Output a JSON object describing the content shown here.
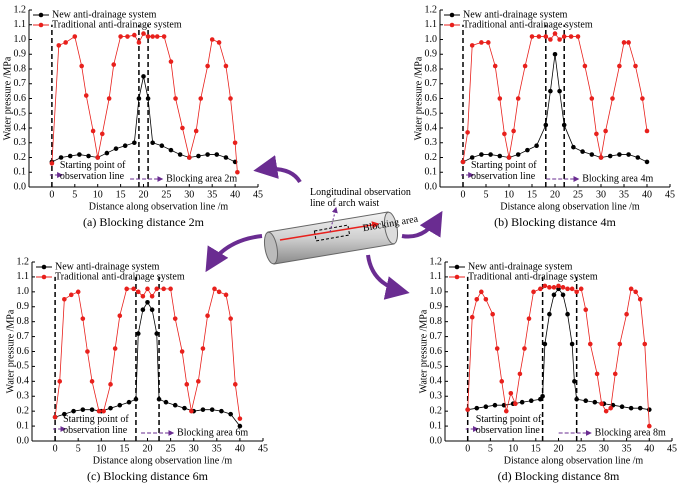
{
  "chart_data": [
    {
      "type": "line",
      "y_label": "Water pressure /MPa",
      "x_label": "Distance along observation line /m",
      "caption": "(a) Blocking distance 2m",
      "xlim": [
        -5,
        45
      ],
      "xticks": [
        0,
        5,
        10,
        15,
        20,
        25,
        30,
        35,
        40,
        45
      ],
      "ylim": [
        0,
        1.2
      ],
      "yticks": [
        {
          "value": 0,
          "label": "0.0"
        },
        0.1,
        0.2,
        0.3,
        0.4,
        0.5,
        0.6,
        0.7,
        0.8,
        0.9,
        {
          "value": 1,
          "label": "1.0"
        },
        1.1,
        1.2
      ],
      "vlines": [
        0,
        19,
        21
      ],
      "annotations": {
        "start_label": [
          "Starting point of",
          "observation line"
        ],
        "block_label": "Blocking area 2m"
      },
      "series": [
        {
          "name": "New anti-drainage system",
          "color": "#000000",
          "x": [
            0,
            2,
            4,
            6,
            8,
            10,
            12,
            14,
            16,
            18,
            19,
            20,
            21,
            22,
            24,
            26,
            28,
            30,
            32,
            34,
            36,
            38,
            40
          ],
          "values": [
            0.17,
            0.2,
            0.21,
            0.22,
            0.21,
            0.2,
            0.23,
            0.26,
            0.28,
            0.3,
            0.6,
            0.75,
            0.6,
            0.3,
            0.28,
            0.25,
            0.22,
            0.2,
            0.21,
            0.22,
            0.22,
            0.2,
            0.17
          ]
        },
        {
          "name": "Traditional anti-drainage system",
          "color": "#e8201c",
          "x": [
            0,
            1.5,
            3,
            5,
            6.5,
            7.5,
            9,
            10,
            11,
            12.5,
            13.5,
            15,
            16.5,
            18,
            19,
            20,
            21,
            22,
            23,
            24.5,
            26,
            27,
            28.5,
            30,
            31.5,
            32.5,
            34,
            35,
            36.5,
            38,
            39,
            40,
            40.5
          ],
          "values": [
            0.16,
            0.96,
            0.98,
            1.02,
            0.82,
            0.62,
            0.38,
            0.2,
            0.36,
            0.6,
            0.83,
            1.02,
            1.02,
            1.03,
            0.98,
            1.04,
            1.02,
            1.02,
            1.02,
            1.02,
            0.85,
            0.6,
            0.4,
            0.2,
            0.38,
            0.6,
            0.82,
            1.0,
            0.98,
            0.82,
            0.6,
            0.3,
            0.1
          ]
        }
      ]
    },
    {
      "type": "line",
      "y_label": "Water pressure /MPa",
      "x_label": "Distance along observation line /m",
      "caption": "(b) Blocking distance 4m",
      "xlim": [
        -5,
        45
      ],
      "xticks": [
        0,
        5,
        10,
        15,
        20,
        25,
        30,
        35,
        40,
        45
      ],
      "ylim": [
        0,
        1.2
      ],
      "yticks": [
        {
          "value": 0,
          "label": "0.0"
        },
        0.1,
        0.2,
        0.3,
        0.4,
        0.5,
        0.6,
        0.7,
        0.8,
        0.9,
        {
          "value": 1,
          "label": "1.0"
        },
        1.1,
        1.2
      ],
      "vlines": [
        0,
        18,
        22
      ],
      "annotations": {
        "start_label": [
          "Starting point of",
          "observation line"
        ],
        "block_label": "Blocking area 4m"
      },
      "series": [
        {
          "name": "New anti-drainage system",
          "color": "#000000",
          "x": [
            0,
            2,
            4,
            6,
            8,
            10,
            12,
            14,
            16,
            18,
            19,
            20,
            21,
            22,
            24,
            26,
            28,
            30,
            32,
            34,
            36,
            38,
            40
          ],
          "values": [
            0.17,
            0.2,
            0.22,
            0.22,
            0.21,
            0.2,
            0.22,
            0.25,
            0.28,
            0.42,
            0.65,
            0.9,
            0.65,
            0.42,
            0.27,
            0.24,
            0.22,
            0.2,
            0.21,
            0.22,
            0.22,
            0.2,
            0.17
          ]
        },
        {
          "name": "Traditional anti-drainage system",
          "color": "#e8201c",
          "x": [
            0,
            1,
            2,
            4,
            5.5,
            7,
            8,
            9,
            10,
            11,
            12,
            13.5,
            15,
            16.5,
            18,
            19,
            20,
            21,
            22,
            23.5,
            25,
            26.5,
            28,
            29,
            30,
            31,
            32.5,
            34,
            35,
            36,
            37.5,
            39,
            40
          ],
          "values": [
            0.17,
            0.37,
            0.96,
            0.98,
            0.98,
            0.82,
            0.6,
            0.36,
            0.2,
            0.38,
            0.6,
            0.82,
            1.02,
            1.02,
            1.02,
            1.0,
            1.04,
            1.0,
            1.02,
            1.02,
            1.02,
            0.82,
            0.6,
            0.36,
            0.2,
            0.38,
            0.6,
            0.82,
            0.98,
            0.98,
            0.82,
            0.6,
            0.38
          ]
        }
      ]
    },
    {
      "type": "line",
      "y_label": "Water pressure /MPa",
      "x_label": "Distance along observation line /m",
      "caption": "(c) Blocking distance 6m",
      "xlim": [
        -5,
        45
      ],
      "xticks": [
        0,
        5,
        10,
        15,
        20,
        25,
        30,
        35,
        40,
        45
      ],
      "ylim": [
        0,
        1.2
      ],
      "yticks": [
        {
          "value": 0,
          "label": "0.0"
        },
        0.1,
        0.2,
        0.3,
        0.4,
        0.5,
        0.6,
        0.7,
        0.8,
        0.9,
        {
          "value": 1,
          "label": "1.0"
        },
        1.1,
        1.2
      ],
      "vlines": [
        0,
        17.5,
        22.5
      ],
      "annotations": {
        "start_label": [
          "Starting point of",
          "observation line"
        ],
        "block_label": "Blocking area 6m"
      },
      "series": [
        {
          "name": "New anti-drainage system",
          "color": "#000000",
          "x": [
            0,
            2,
            4,
            6,
            8,
            10,
            12,
            14,
            16,
            17.5,
            18,
            19,
            20,
            21,
            22,
            22.5,
            24,
            26,
            28,
            30,
            32,
            34,
            36,
            38,
            40
          ],
          "values": [
            0.16,
            0.18,
            0.2,
            0.21,
            0.21,
            0.2,
            0.22,
            0.24,
            0.26,
            0.28,
            0.72,
            0.88,
            0.93,
            0.88,
            0.72,
            0.28,
            0.26,
            0.24,
            0.22,
            0.2,
            0.21,
            0.21,
            0.2,
            0.18,
            0.1
          ]
        },
        {
          "name": "Traditional anti-drainage system",
          "color": "#e8201c",
          "x": [
            0,
            1,
            2,
            3.5,
            5,
            6,
            7,
            8,
            9.5,
            10.5,
            12,
            13,
            14,
            15.5,
            17,
            18,
            19,
            20,
            21,
            22,
            23.5,
            25,
            26,
            27.5,
            28.5,
            29.5,
            31,
            32,
            33,
            34.5,
            35.5,
            37,
            38,
            39,
            40
          ],
          "values": [
            0.16,
            0.4,
            0.95,
            0.98,
            1.0,
            0.82,
            0.6,
            0.4,
            0.2,
            0.2,
            0.38,
            0.62,
            0.84,
            1.02,
            1.02,
            1.0,
            0.97,
            1.02,
            0.97,
            1.02,
            1.02,
            1.02,
            0.82,
            0.6,
            0.38,
            0.2,
            0.4,
            0.62,
            0.84,
            1.02,
            1.0,
            0.98,
            0.82,
            0.38,
            0.15
          ]
        }
      ]
    },
    {
      "type": "line",
      "y_label": "Water pressure /MPa",
      "x_label": "Distance along observation line /m",
      "caption": "(d) Blocking distance 8m",
      "xlim": [
        -5,
        45
      ],
      "xticks": [
        0,
        5,
        10,
        15,
        20,
        25,
        30,
        35,
        40,
        45
      ],
      "ylim": [
        0,
        1.2
      ],
      "yticks": [
        {
          "value": 0,
          "label": "0.0"
        },
        0.1,
        0.2,
        0.3,
        0.4,
        0.5,
        0.6,
        0.7,
        0.8,
        0.9,
        {
          "value": 1,
          "label": "1.0"
        },
        1.1,
        1.2
      ],
      "vlines": [
        0,
        16.5,
        24
      ],
      "annotations": {
        "start_label": [
          "Starting point of",
          "observation line"
        ],
        "block_label": "Blocking area 8m"
      },
      "series": [
        {
          "name": "New anti-drainage system",
          "color": "#000000",
          "x": [
            0,
            2,
            4,
            6,
            8,
            10,
            12,
            14,
            16,
            16.5,
            17,
            18,
            19,
            20,
            21,
            22,
            23,
            23.5,
            24,
            26,
            28,
            30,
            32,
            34,
            36,
            38,
            40
          ],
          "values": [
            0.21,
            0.22,
            0.23,
            0.24,
            0.24,
            0.25,
            0.26,
            0.27,
            0.28,
            0.3,
            0.65,
            0.85,
            0.98,
            1.02,
            0.98,
            0.85,
            0.65,
            0.4,
            0.28,
            0.27,
            0.26,
            0.25,
            0.24,
            0.23,
            0.22,
            0.22,
            0.21
          ]
        },
        {
          "name": "Traditional anti-drainage system",
          "color": "#e8201c",
          "x": [
            0,
            1,
            2,
            3,
            4,
            5.5,
            6.5,
            7.5,
            8.5,
            9.5,
            10.5,
            11.5,
            12.5,
            13.5,
            14.5,
            16,
            17,
            18,
            19,
            20,
            21,
            22,
            23,
            24,
            25,
            26,
            27,
            28.5,
            29.5,
            30.5,
            31.5,
            32.5,
            33.5,
            35,
            36,
            37,
            38,
            39,
            40
          ],
          "values": [
            0.21,
            0.83,
            0.95,
            1.0,
            0.95,
            0.85,
            0.62,
            0.4,
            0.2,
            0.32,
            0.25,
            0.45,
            0.62,
            0.82,
            1.0,
            1.02,
            1.04,
            1.03,
            1.03,
            1.04,
            1.03,
            1.02,
            1.02,
            1.0,
            1.02,
            0.88,
            0.65,
            0.45,
            0.25,
            0.2,
            0.22,
            0.45,
            0.65,
            0.85,
            1.02,
            1.0,
            0.95,
            0.65,
            0.1
          ]
        }
      ]
    }
  ],
  "diagram": {
    "observation_label": [
      "Longitudinal observation",
      "line of arch waist"
    ],
    "blocking_label": "Blocking area"
  }
}
